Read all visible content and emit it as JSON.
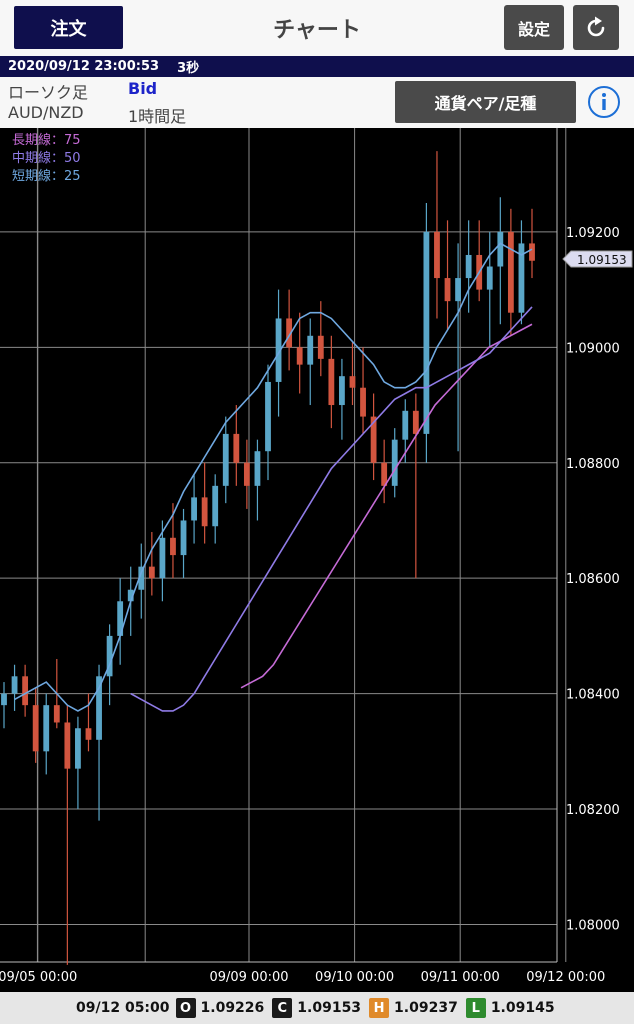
{
  "header": {
    "order_label": "注文",
    "title": "チャート",
    "settings_label": "設定"
  },
  "status": {
    "datetime": "2020/09/12 23:00:53",
    "interval": "3秒"
  },
  "info": {
    "chart_type": "ローソク足",
    "price_type": "Bid",
    "pair": "AUD/NZD",
    "timeframe": "1時間足",
    "pair_button_label": "通貨ペア/足種"
  },
  "chart_data": {
    "type": "candlestick",
    "legend": [
      {
        "name": "長期線：75",
        "color": "#c56bd6"
      },
      {
        "name": "中期線：50",
        "color": "#8f7be6"
      },
      {
        "name": "短期線：25",
        "color": "#6fa8e0"
      }
    ],
    "y_ticks": [
      "1.09200",
      "1.09000",
      "1.08800",
      "1.08600",
      "1.08400",
      "1.08200",
      "1.08000"
    ],
    "y_tick_values": [
      1.092,
      1.09,
      1.088,
      1.086,
      1.084,
      1.082,
      1.08
    ],
    "ylim": [
      1.07935,
      1.0938
    ],
    "x_ticks": [
      {
        "label": "09/05 00:00",
        "pos": 6
      },
      {
        "label": "09/09 00:00",
        "pos": 26
      },
      {
        "label": "09/10 00:00",
        "pos": 36
      },
      {
        "label": "09/11 00:00",
        "pos": 46
      },
      {
        "label": "09/12 00:00",
        "pos": 56
      }
    ],
    "current_price": "1.09153",
    "current_value": 1.09153,
    "up_color": "#5aa6c8",
    "down_color": "#d2553f",
    "short_ma": [
      1.0839,
      1.084,
      1.0841,
      1.0842,
      1.084,
      1.0838,
      1.0837,
      1.0838,
      1.0841,
      1.0845,
      1.085,
      1.0856,
      1.0861,
      1.0865,
      1.0868,
      1.0871,
      1.0875,
      1.0878,
      1.0881,
      1.0884,
      1.0887,
      1.0889,
      1.0891,
      1.0893,
      1.0896,
      1.0899,
      1.0902,
      1.0905,
      1.0906,
      1.0906,
      1.0905,
      1.0903,
      1.0901,
      1.0899,
      1.0897,
      1.0894,
      1.0893,
      1.0893,
      1.0894,
      1.0896,
      1.09,
      1.0903,
      1.0906,
      1.091,
      1.0913,
      1.0916,
      1.0918,
      1.0917,
      1.0916,
      1.0917
    ],
    "mid_ma": [
      1.084,
      1.0839,
      1.0838,
      1.0837,
      1.0837,
      1.0838,
      1.084,
      1.0843,
      1.0846,
      1.0849,
      1.0852,
      1.0855,
      1.0858,
      1.0861,
      1.0864,
      1.0867,
      1.087,
      1.0873,
      1.0876,
      1.0879,
      1.0881,
      1.0883,
      1.0885,
      1.0887,
      1.0889,
      1.0891,
      1.0892,
      1.0893,
      1.0893,
      1.0894,
      1.0895,
      1.0896,
      1.0897,
      1.0898,
      1.0899,
      1.0901,
      1.0903,
      1.0905,
      1.0907
    ],
    "long_ma": [
      1.0841,
      1.0842,
      1.0843,
      1.0845,
      1.0848,
      1.0851,
      1.0854,
      1.0857,
      1.086,
      1.0863,
      1.0866,
      1.0869,
      1.0872,
      1.0875,
      1.0878,
      1.0881,
      1.0884,
      1.0887,
      1.089,
      1.0892,
      1.0894,
      1.0896,
      1.0898,
      1.09,
      1.0901,
      1.0902,
      1.0903,
      1.0904
    ],
    "candles": [
      [
        1.0838,
        1.0842,
        1.0834,
        1.084
      ],
      [
        1.084,
        1.0845,
        1.0837,
        1.0843
      ],
      [
        1.0843,
        1.0845,
        1.0836,
        1.0838
      ],
      [
        1.0838,
        1.0841,
        1.0828,
        1.083
      ],
      [
        1.083,
        1.084,
        1.0826,
        1.0838
      ],
      [
        1.0838,
        1.0846,
        1.0834,
        1.0835
      ],
      [
        1.0835,
        1.0838,
        1.0793,
        1.0827
      ],
      [
        1.0827,
        1.0836,
        1.082,
        1.0834
      ],
      [
        1.0834,
        1.084,
        1.083,
        1.0832
      ],
      [
        1.0832,
        1.0845,
        1.0818,
        1.0843
      ],
      [
        1.0843,
        1.0852,
        1.0838,
        1.085
      ],
      [
        1.085,
        1.086,
        1.0845,
        1.0856
      ],
      [
        1.0856,
        1.0862,
        1.085,
        1.0858
      ],
      [
        1.0858,
        1.0866,
        1.0853,
        1.0862
      ],
      [
        1.0862,
        1.0868,
        1.0857,
        1.086
      ],
      [
        1.086,
        1.087,
        1.0856,
        1.0867
      ],
      [
        1.0867,
        1.0873,
        1.086,
        1.0864
      ],
      [
        1.0864,
        1.0872,
        1.086,
        1.087
      ],
      [
        1.087,
        1.0878,
        1.0866,
        1.0874
      ],
      [
        1.0874,
        1.088,
        1.0866,
        1.0869
      ],
      [
        1.0869,
        1.0878,
        1.0866,
        1.0876
      ],
      [
        1.0876,
        1.0888,
        1.0873,
        1.0885
      ],
      [
        1.0885,
        1.089,
        1.0876,
        1.088
      ],
      [
        1.088,
        1.0884,
        1.0872,
        1.0876
      ],
      [
        1.0876,
        1.0884,
        1.087,
        1.0882
      ],
      [
        1.0882,
        1.0897,
        1.0877,
        1.0894
      ],
      [
        1.0894,
        1.091,
        1.0888,
        1.0905
      ],
      [
        1.0905,
        1.091,
        1.0896,
        1.09
      ],
      [
        1.09,
        1.0906,
        1.0892,
        1.0897
      ],
      [
        1.0897,
        1.0905,
        1.089,
        1.0902
      ],
      [
        1.0902,
        1.0908,
        1.0895,
        1.0898
      ],
      [
        1.0898,
        1.0902,
        1.0886,
        1.089
      ],
      [
        1.089,
        1.0898,
        1.0884,
        1.0895
      ],
      [
        1.0895,
        1.0901,
        1.089,
        1.0893
      ],
      [
        1.0893,
        1.09,
        1.0885,
        1.0888
      ],
      [
        1.0888,
        1.0892,
        1.0877,
        1.088
      ],
      [
        1.088,
        1.0884,
        1.0873,
        1.0876
      ],
      [
        1.0876,
        1.0886,
        1.0874,
        1.0884
      ],
      [
        1.0884,
        1.0891,
        1.088,
        1.0889
      ],
      [
        1.0889,
        1.0892,
        1.086,
        1.0885
      ],
      [
        1.0885,
        1.0925,
        1.088,
        1.092
      ],
      [
        1.092,
        1.0934,
        1.0905,
        1.0912
      ],
      [
        1.0912,
        1.0922,
        1.0903,
        1.0908
      ],
      [
        1.0908,
        1.0918,
        1.0882,
        1.0912
      ],
      [
        1.0912,
        1.0922,
        1.0906,
        1.0916
      ],
      [
        1.0916,
        1.0922,
        1.0908,
        1.091
      ],
      [
        1.091,
        1.092,
        1.09,
        1.0914
      ],
      [
        1.0914,
        1.0926,
        1.0904,
        1.092
      ],
      [
        1.092,
        1.0924,
        1.0902,
        1.0906
      ],
      [
        1.0906,
        1.0922,
        1.0904,
        1.0918
      ],
      [
        1.0918,
        1.0924,
        1.0912,
        1.0915
      ]
    ]
  },
  "ohlc": {
    "time": "09/12 05:00",
    "o_label": "O",
    "o_value": "1.09226",
    "c_label": "C",
    "c_value": "1.09153",
    "h_label": "H",
    "h_value": "1.09237",
    "l_label": "L",
    "l_value": "1.09145"
  }
}
